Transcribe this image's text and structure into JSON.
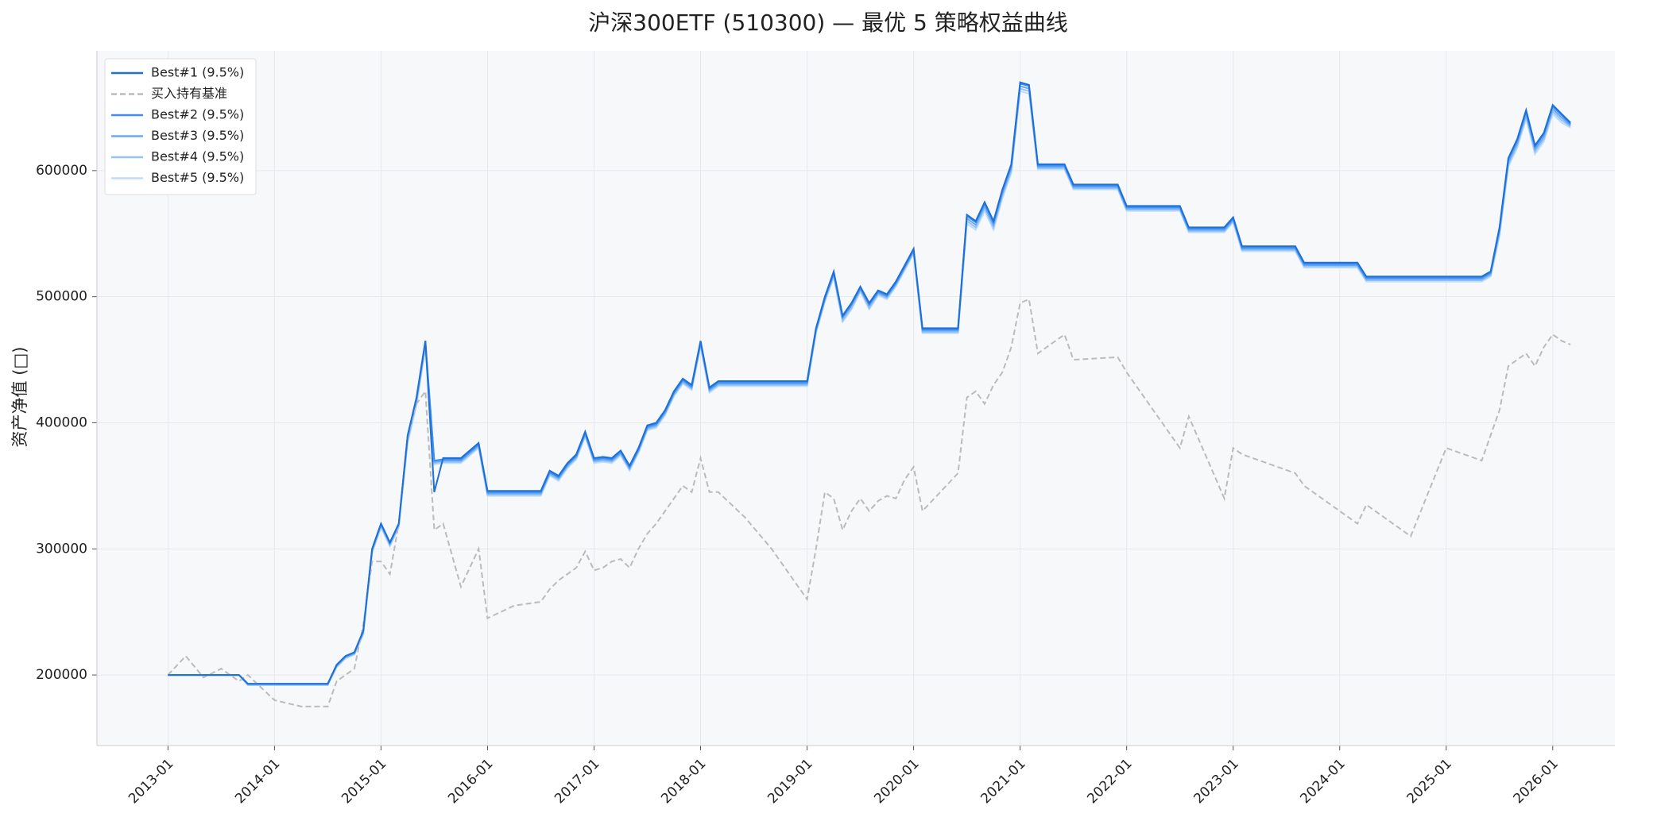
{
  "chart_data": {
    "type": "line",
    "title": "沪深300ETF (510300) — 最优 5 策略权益曲线",
    "y_label": "资产净值 (□)",
    "x": [
      "2013-01",
      "2013-03",
      "2013-05",
      "2013-07",
      "2013-09",
      "2013-10",
      "2014-01",
      "2014-04",
      "2014-07",
      "2014-08",
      "2014-09",
      "2014-10",
      "2014-11",
      "2014-12",
      "2015-01",
      "2015-02",
      "2015-03",
      "2015-04",
      "2015-05",
      "2015-06",
      "2015-07",
      "2015-08",
      "2015-10",
      "2015-12",
      "2016-01",
      "2016-04",
      "2016-07",
      "2016-08",
      "2016-09",
      "2016-10",
      "2016-11",
      "2016-12",
      "2017-01",
      "2017-02",
      "2017-03",
      "2017-04",
      "2017-05",
      "2017-06",
      "2017-07",
      "2017-08",
      "2017-09",
      "2017-10",
      "2017-11",
      "2017-12",
      "2018-01",
      "2018-02",
      "2018-03",
      "2018-06",
      "2018-09",
      "2019-01",
      "2019-02",
      "2019-03",
      "2019-04",
      "2019-05",
      "2019-06",
      "2019-07",
      "2019-08",
      "2019-09",
      "2019-10",
      "2019-11",
      "2019-12",
      "2020-01",
      "2020-02",
      "2020-04",
      "2020-06",
      "2020-07",
      "2020-08",
      "2020-09",
      "2020-10",
      "2020-11",
      "2020-12",
      "2021-01",
      "2021-02",
      "2021-03",
      "2021-06",
      "2021-07",
      "2021-12",
      "2022-01",
      "2022-07",
      "2022-08",
      "2022-12",
      "2023-01",
      "2023-02",
      "2023-08",
      "2023-09",
      "2024-03",
      "2024-04",
      "2024-09",
      "2025-01",
      "2025-05",
      "2025-06",
      "2025-07",
      "2025-08",
      "2025-09",
      "2025-10",
      "2025-11",
      "2025-12",
      "2026-01",
      "2026-02",
      "2026-03"
    ],
    "series": [
      {
        "name": "Best#1 (9.5%)",
        "color": "#1f6fd8",
        "linestyle": "solid",
        "values": [
          200000,
          200000,
          200000,
          200000,
          200000,
          193000,
          193000,
          193000,
          193000,
          208000,
          215000,
          218000,
          235000,
          300000,
          320000,
          305000,
          320000,
          390000,
          420000,
          465000,
          345000,
          372000,
          372000,
          384000,
          346000,
          346000,
          346000,
          362000,
          358000,
          368000,
          375000,
          393000,
          372000,
          373000,
          372000,
          378000,
          366000,
          380000,
          398000,
          400000,
          410000,
          425000,
          435000,
          430000,
          465000,
          428000,
          433000,
          433000,
          433000,
          433000,
          475000,
          500000,
          520000,
          485000,
          495000,
          508000,
          495000,
          505000,
          502000,
          512000,
          525000,
          538000,
          475000,
          475000,
          475000,
          565000,
          560000,
          575000,
          560000,
          585000,
          605000,
          670000,
          668000,
          605000,
          605000,
          589000,
          589000,
          572000,
          572000,
          555000,
          555000,
          563000,
          540000,
          540000,
          527000,
          527000,
          516000,
          516000,
          516000,
          516000,
          520000,
          555000,
          610000,
          625000,
          648000,
          620000,
          630000,
          652000,
          645000,
          638000
        ]
      },
      {
        "name": "买入持有基准",
        "color": "#bbbbbb",
        "linestyle": "dashed",
        "values": [
          200000,
          215000,
          198000,
          205000,
          195000,
          200000,
          180000,
          175000,
          175000,
          195000,
          200000,
          205000,
          240000,
          290000,
          290000,
          280000,
          320000,
          390000,
          415000,
          425000,
          315000,
          320000,
          270000,
          300000,
          245000,
          255000,
          258000,
          268000,
          275000,
          280000,
          285000,
          298000,
          283000,
          285000,
          290000,
          292000,
          285000,
          300000,
          312000,
          320000,
          330000,
          340000,
          350000,
          345000,
          372000,
          345000,
          345000,
          325000,
          300000,
          260000,
          300000,
          345000,
          340000,
          315000,
          330000,
          340000,
          330000,
          338000,
          342000,
          340000,
          355000,
          365000,
          330000,
          345000,
          360000,
          420000,
          425000,
          415000,
          430000,
          440000,
          460000,
          495000,
          498000,
          455000,
          470000,
          450000,
          452000,
          440000,
          380000,
          405000,
          340000,
          380000,
          375000,
          360000,
          350000,
          320000,
          335000,
          310000,
          380000,
          370000,
          390000,
          410000,
          445000,
          450000,
          455000,
          445000,
          460000,
          470000,
          465000,
          462000
        ]
      },
      {
        "name": "Best#2 (9.5%)",
        "color": "#3d8ef0",
        "linestyle": "solid",
        "values": [
          200000,
          200000,
          200000,
          200000,
          200000,
          193000,
          193000,
          193000,
          193000,
          208000,
          215000,
          218000,
          235000,
          300000,
          320000,
          305000,
          320000,
          390000,
          420000,
          465000,
          370000,
          371000,
          371000,
          383000,
          345000,
          345000,
          345000,
          361000,
          357000,
          367000,
          374000,
          392000,
          371000,
          372000,
          371000,
          377000,
          365000,
          379000,
          397000,
          399000,
          409000,
          424000,
          434000,
          429000,
          464000,
          427000,
          432000,
          432000,
          432000,
          432000,
          474000,
          499000,
          519000,
          484000,
          494000,
          507000,
          494000,
          504000,
          501000,
          511000,
          524000,
          537000,
          474000,
          474000,
          474000,
          564000,
          559000,
          574000,
          559000,
          584000,
          604000,
          669000,
          667000,
          604000,
          604000,
          588000,
          588000,
          571000,
          571000,
          554000,
          554000,
          562000,
          539000,
          539000,
          526000,
          526000,
          515000,
          515000,
          515000,
          515000,
          519000,
          554000,
          609000,
          624000,
          647000,
          619000,
          629000,
          651000,
          644000,
          637000
        ]
      },
      {
        "name": "Best#3 (9.5%)",
        "color": "#66a8f5",
        "linestyle": "solid",
        "values": [
          200000,
          200000,
          200000,
          200000,
          200000,
          193000,
          193000,
          193000,
          193000,
          207000,
          214000,
          217000,
          234000,
          299000,
          319000,
          304000,
          319000,
          388000,
          418000,
          463000,
          369000,
          370000,
          370000,
          382000,
          344000,
          344000,
          344000,
          360000,
          356000,
          366000,
          373000,
          391000,
          370000,
          371000,
          370000,
          376000,
          364000,
          378000,
          396000,
          398000,
          408000,
          423000,
          433000,
          428000,
          463000,
          426000,
          431000,
          431000,
          431000,
          431000,
          473000,
          498000,
          518000,
          483000,
          493000,
          506000,
          493000,
          503000,
          500000,
          510000,
          523000,
          536000,
          473000,
          473000,
          473000,
          562000,
          557000,
          572000,
          557000,
          582000,
          602000,
          667000,
          665000,
          603000,
          603000,
          587000,
          587000,
          570000,
          570000,
          553000,
          553000,
          561000,
          538000,
          538000,
          525000,
          525000,
          514000,
          514000,
          514000,
          514000,
          518000,
          552000,
          607000,
          622000,
          645000,
          617000,
          627000,
          649000,
          642000,
          636000
        ]
      },
      {
        "name": "Best#4 (9.5%)",
        "color": "#94c3f7",
        "linestyle": "solid",
        "values": [
          200000,
          200000,
          200000,
          200000,
          200000,
          192000,
          192000,
          192000,
          192000,
          207000,
          214000,
          217000,
          233000,
          298000,
          318000,
          303000,
          318000,
          386000,
          416000,
          461000,
          368000,
          369000,
          369000,
          381000,
          343000,
          343000,
          343000,
          359000,
          355000,
          365000,
          372000,
          390000,
          369000,
          370000,
          369000,
          375000,
          363000,
          377000,
          395000,
          397000,
          407000,
          422000,
          432000,
          427000,
          462000,
          425000,
          430000,
          430000,
          430000,
          430000,
          472000,
          497000,
          517000,
          481000,
          491000,
          505000,
          491000,
          502000,
          499000,
          509000,
          522000,
          535000,
          472000,
          472000,
          472000,
          560000,
          555000,
          570000,
          555000,
          580000,
          600000,
          665000,
          663000,
          602000,
          602000,
          586000,
          586000,
          569000,
          569000,
          552000,
          552000,
          560000,
          537000,
          537000,
          524000,
          524000,
          513000,
          513000,
          513000,
          513000,
          517000,
          550000,
          605000,
          620000,
          643000,
          615000,
          625000,
          647000,
          640000,
          635000
        ]
      },
      {
        "name": "Best#5 (9.5%)",
        "color": "#c0dcf9",
        "linestyle": "solid",
        "values": [
          200000,
          200000,
          200000,
          200000,
          200000,
          192000,
          192000,
          192000,
          192000,
          206000,
          213000,
          216000,
          232000,
          297000,
          317000,
          302000,
          317000,
          384000,
          414000,
          459000,
          367000,
          368000,
          368000,
          380000,
          342000,
          342000,
          342000,
          358000,
          354000,
          364000,
          371000,
          389000,
          368000,
          369000,
          368000,
          374000,
          362000,
          376000,
          394000,
          396000,
          406000,
          421000,
          431000,
          426000,
          460000,
          424000,
          429000,
          429000,
          429000,
          429000,
          471000,
          496000,
          515000,
          480000,
          490000,
          504000,
          490000,
          501000,
          498000,
          508000,
          521000,
          534000,
          471000,
          471000,
          471000,
          558000,
          553000,
          568000,
          553000,
          578000,
          598000,
          663000,
          661000,
          601000,
          601000,
          585000,
          585000,
          568000,
          568000,
          551000,
          551000,
          559000,
          536000,
          536000,
          523000,
          523000,
          512000,
          512000,
          512000,
          512000,
          516000,
          548000,
          603000,
          618000,
          641000,
          613000,
          623000,
          645000,
          638000,
          634000
        ]
      }
    ],
    "xlim": [
      "2012-05",
      "2026-08"
    ],
    "xticks": [
      "2013-01",
      "2014-01",
      "2015-01",
      "2016-01",
      "2017-01",
      "2018-01",
      "2019-01",
      "2020-01",
      "2021-01",
      "2022-01",
      "2023-01",
      "2024-01",
      "2025-01",
      "2026-01"
    ],
    "ylim": [
      144000,
      695000
    ],
    "yticks": [
      200000,
      300000,
      400000,
      500000,
      600000
    ],
    "grid": true,
    "legend": "upper left"
  }
}
